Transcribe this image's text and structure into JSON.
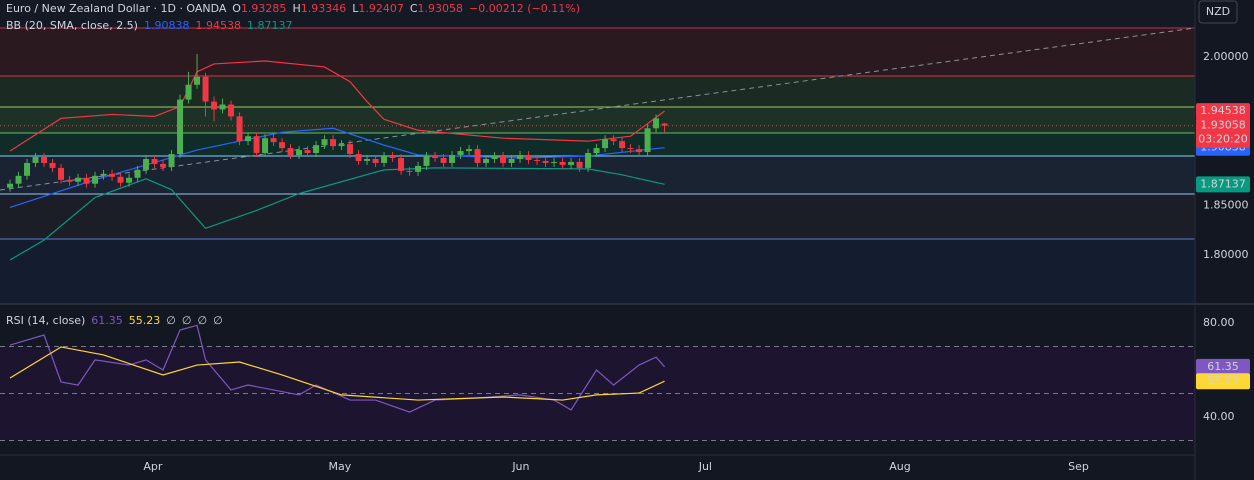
{
  "header": {
    "ohlc_labels": [
      "O",
      "H",
      "L",
      "C"
    ],
    "change": "−0.00212 (−0.11%)"
  },
  "chart_data": [
    {
      "type": "candlestick",
      "title": "Euro / New Zealand Dollar · 1D · OANDA",
      "currency": "NZD",
      "countdown": "03:20:20",
      "indicator": "BB (20, SMA, close, 2.5)",
      "up_color": "#4caf50",
      "down_color": "#f23645",
      "xlim": [
        -1.18,
        139.4
      ],
      "xticks": [
        {
          "value": 16.8,
          "label": "Apr"
        },
        {
          "value": 38.8,
          "label": "May"
        },
        {
          "value": 60.1,
          "label": "Jun"
        },
        {
          "value": 81.8,
          "label": "Jul"
        },
        {
          "value": 104.7,
          "label": "Aug"
        },
        {
          "value": 125.7,
          "label": "Sep"
        }
      ],
      "ylim": [
        1.7515,
        2.0576
      ],
      "yticks": [
        {
          "value": 2.0,
          "label": "2.00000"
        },
        {
          "value": 1.85,
          "label": "1.85000"
        },
        {
          "value": 1.8,
          "label": "1.80000"
        }
      ],
      "candles": [
        [
          1.868,
          1.876,
          1.864,
          1.872
        ],
        [
          1.872,
          1.884,
          1.868,
          1.88
        ],
        [
          1.88,
          1.897,
          1.876,
          1.893
        ],
        [
          1.893,
          1.903,
          1.889,
          1.899
        ],
        [
          1.899,
          1.903,
          1.889,
          1.893
        ],
        [
          1.893,
          1.897,
          1.884,
          1.888
        ],
        [
          1.888,
          1.892,
          1.872,
          1.876
        ],
        [
          1.876,
          1.88,
          1.87,
          1.874
        ],
        [
          1.874,
          1.882,
          1.87,
          1.878
        ],
        [
          1.878,
          1.882,
          1.868,
          1.872
        ],
        [
          1.872,
          1.884,
          1.868,
          1.88
        ],
        [
          1.88,
          1.886,
          1.876,
          1.882
        ],
        [
          1.882,
          1.886,
          1.875,
          1.879
        ],
        [
          1.879,
          1.883,
          1.869,
          1.873
        ],
        [
          1.873,
          1.882,
          1.869,
          1.878
        ],
        [
          1.878,
          1.89,
          1.874,
          1.886
        ],
        [
          1.886,
          1.901,
          1.882,
          1.897
        ],
        [
          1.897,
          1.901,
          1.888,
          1.892
        ],
        [
          1.892,
          1.896,
          1.885,
          1.889
        ],
        [
          1.889,
          1.906,
          1.885,
          1.902
        ],
        [
          1.902,
          1.962,
          1.898,
          1.957
        ],
        [
          1.957,
          1.985,
          1.953,
          1.972
        ],
        [
          1.972,
          2.003,
          1.968,
          1.98
        ],
        [
          1.98,
          1.984,
          1.94,
          1.955
        ],
        [
          1.955,
          1.96,
          1.935,
          1.947
        ],
        [
          1.947,
          1.958,
          1.943,
          1.952
        ],
        [
          1.952,
          1.956,
          1.936,
          1.94
        ],
        [
          1.94,
          1.944,
          1.911,
          1.915
        ],
        [
          1.915,
          1.924,
          1.911,
          1.92
        ],
        [
          1.92,
          1.924,
          1.899,
          1.903
        ],
        [
          1.903,
          1.922,
          1.899,
          1.918
        ],
        [
          1.918,
          1.922,
          1.91,
          1.914
        ],
        [
          1.914,
          1.918,
          1.904,
          1.908
        ],
        [
          1.908,
          1.912,
          1.897,
          1.901
        ],
        [
          1.901,
          1.91,
          1.897,
          1.906
        ],
        [
          1.906,
          1.91,
          1.899,
          1.903
        ],
        [
          1.903,
          1.915,
          1.899,
          1.911
        ],
        [
          1.911,
          1.921,
          1.907,
          1.917
        ],
        [
          1.917,
          1.921,
          1.906,
          1.91
        ],
        [
          1.91,
          1.916,
          1.906,
          1.912
        ],
        [
          1.912,
          1.916,
          1.898,
          1.902
        ],
        [
          1.902,
          1.906,
          1.891,
          1.895
        ],
        [
          1.895,
          1.901,
          1.891,
          1.897
        ],
        [
          1.897,
          1.901,
          1.889,
          1.893
        ],
        [
          1.893,
          1.904,
          1.889,
          1.9
        ],
        [
          1.9,
          1.904,
          1.894,
          1.898
        ],
        [
          1.898,
          1.902,
          1.881,
          1.885
        ],
        [
          1.885,
          1.889,
          1.88,
          1.884
        ],
        [
          1.884,
          1.894,
          1.88,
          1.89
        ],
        [
          1.89,
          1.904,
          1.886,
          1.9
        ],
        [
          1.9,
          1.904,
          1.894,
          1.898
        ],
        [
          1.898,
          1.902,
          1.889,
          1.893
        ],
        [
          1.893,
          1.905,
          1.889,
          1.901
        ],
        [
          1.901,
          1.909,
          1.897,
          1.905
        ],
        [
          1.905,
          1.911,
          1.901,
          1.907
        ],
        [
          1.907,
          1.911,
          1.889,
          1.893
        ],
        [
          1.893,
          1.901,
          1.889,
          1.897
        ],
        [
          1.897,
          1.904,
          1.893,
          1.9
        ],
        [
          1.9,
          1.904,
          1.889,
          1.893
        ],
        [
          1.893,
          1.901,
          1.889,
          1.897
        ],
        [
          1.897,
          1.905,
          1.893,
          1.901
        ],
        [
          1.901,
          1.905,
          1.892,
          1.896
        ],
        [
          1.896,
          1.9,
          1.891,
          1.895
        ],
        [
          1.895,
          1.899,
          1.889,
          1.893
        ],
        [
          1.893,
          1.898,
          1.889,
          1.894
        ],
        [
          1.894,
          1.898,
          1.887,
          1.891
        ],
        [
          1.891,
          1.898,
          1.887,
          1.894
        ],
        [
          1.894,
          1.898,
          1.884,
          1.888
        ],
        [
          1.888,
          1.907,
          1.884,
          1.903
        ],
        [
          1.903,
          1.912,
          1.899,
          1.908
        ],
        [
          1.908,
          1.921,
          1.904,
          1.917
        ],
        [
          1.917,
          1.921,
          1.911,
          1.915
        ],
        [
          1.915,
          1.919,
          1.904,
          1.908
        ],
        [
          1.908,
          1.912,
          1.903,
          1.907
        ],
        [
          1.907,
          1.911,
          1.9,
          1.904
        ],
        [
          1.904,
          1.932,
          1.9,
          1.928
        ],
        [
          1.928,
          1.942,
          1.924,
          1.938
        ],
        [
          1.93285,
          1.93346,
          1.92407,
          1.93058
        ]
      ],
      "bands": [
        {
          "color": "#2962ff",
          "x": [
            0,
            10,
            16,
            22,
            32,
            38,
            44,
            48,
            60,
            68,
            77
          ],
          "values": [
            1.848,
            1.876,
            1.891,
            1.906,
            1.924,
            1.928,
            1.911,
            1.901,
            1.898,
            1.9,
            1.90838
          ]
        },
        {
          "color": "#f23645",
          "x": [
            0,
            6,
            12,
            17,
            20,
            22,
            24,
            30,
            37,
            40,
            42,
            44,
            48,
            58,
            68,
            73,
            77
          ],
          "values": [
            1.905,
            1.938,
            1.942,
            1.94,
            1.95,
            1.985,
            1.993,
            1.996,
            1.99,
            1.975,
            1.955,
            1.937,
            1.926,
            1.918,
            1.915,
            1.92,
            1.94538
          ]
        },
        {
          "color": "#089981",
          "x": [
            0,
            4,
            10,
            16,
            19,
            23,
            29,
            34,
            44,
            50,
            68,
            72,
            77
          ],
          "values": [
            1.795,
            1.815,
            1.858,
            1.877,
            1.866,
            1.827,
            1.845,
            1.862,
            1.886,
            1.888,
            1.887,
            1.881,
            1.87137
          ]
        }
      ]
    },
    {
      "type": "line",
      "title": "RSI (14, close)",
      "empty_values": [
        "∅",
        "∅",
        "∅",
        "∅"
      ],
      "ylim": [
        23.83,
        87.66
      ],
      "yticks": [
        {
          "value": 80,
          "label": "80.00"
        },
        {
          "value": 40,
          "label": "40.00"
        }
      ],
      "levels": [
        70,
        50,
        30
      ],
      "series": [
        {
          "color": "#7e57c2",
          "x": [
            0,
            4,
            6,
            8,
            10,
            14,
            16,
            18,
            20,
            22,
            23,
            26,
            28,
            34,
            36,
            40,
            43,
            47,
            50,
            55,
            60,
            64,
            66,
            69,
            71,
            74,
            76,
            77
          ],
          "values": [
            70.6,
            74.9,
            54.9,
            53.6,
            64.3,
            62.1,
            64.3,
            60.0,
            77.0,
            79.0,
            64.3,
            51.5,
            53.6,
            49.4,
            53.6,
            47.2,
            47.2,
            42.1,
            47.2,
            48.1,
            49.4,
            47.2,
            43.0,
            60.0,
            53.6,
            62.1,
            65.5,
            61.35
          ]
        },
        {
          "color": "#fdd835",
          "x": [
            0,
            6,
            11,
            18,
            22,
            27,
            32,
            39,
            48,
            58,
            65,
            69,
            74,
            77
          ],
          "values": [
            56.6,
            69.8,
            66.4,
            57.9,
            62.1,
            63.4,
            57.9,
            49.4,
            47.2,
            48.5,
            47.2,
            49.4,
            50.2,
            55.23
          ]
        }
      ]
    }
  ]
}
